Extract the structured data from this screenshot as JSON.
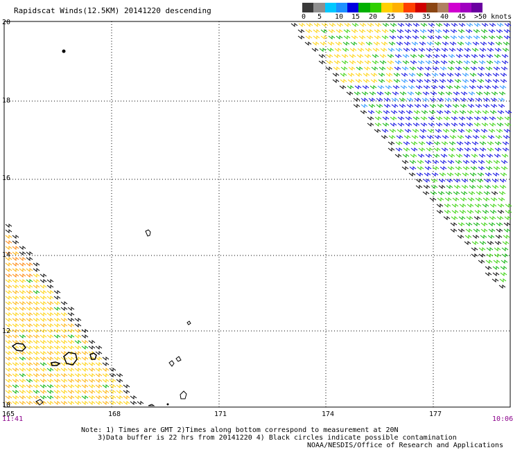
{
  "title": "Rapidscat Winds(12.5KM) 20141220 descending",
  "colorbar": {
    "colors": [
      "#3a3a3a",
      "#8f8f8f",
      "#00c8ff",
      "#1e90ff",
      "#0000e0",
      "#00b000",
      "#30d000",
      "#ffd000",
      "#ffb000",
      "#ff4000",
      "#d00000",
      "#8b4513",
      "#b08060",
      "#d000d0",
      "#a000c0",
      "#6a00a0"
    ],
    "labels": [
      "0",
      "5",
      "10",
      "15",
      "20",
      "25",
      "30",
      "35",
      "40",
      "45",
      ">50 knots"
    ]
  },
  "axes": {
    "lat_labels": [
      "20",
      "18",
      "16",
      "14",
      "12",
      "10"
    ],
    "lon_labels": [
      "165",
      "168",
      "171",
      "174",
      "177"
    ],
    "time_left": "11:41",
    "time_right": "10:06"
  },
  "notes": {
    "line1": "Note: 1) Times are GMT 2)Times along bottom correspond to measurement at 20N",
    "line2": "3)Data buffer is 22 hrs from 20141220 4) Black circles indicate possible contamination",
    "credit": "NOAA/NESDIS/Office of Research and Applications"
  }
}
